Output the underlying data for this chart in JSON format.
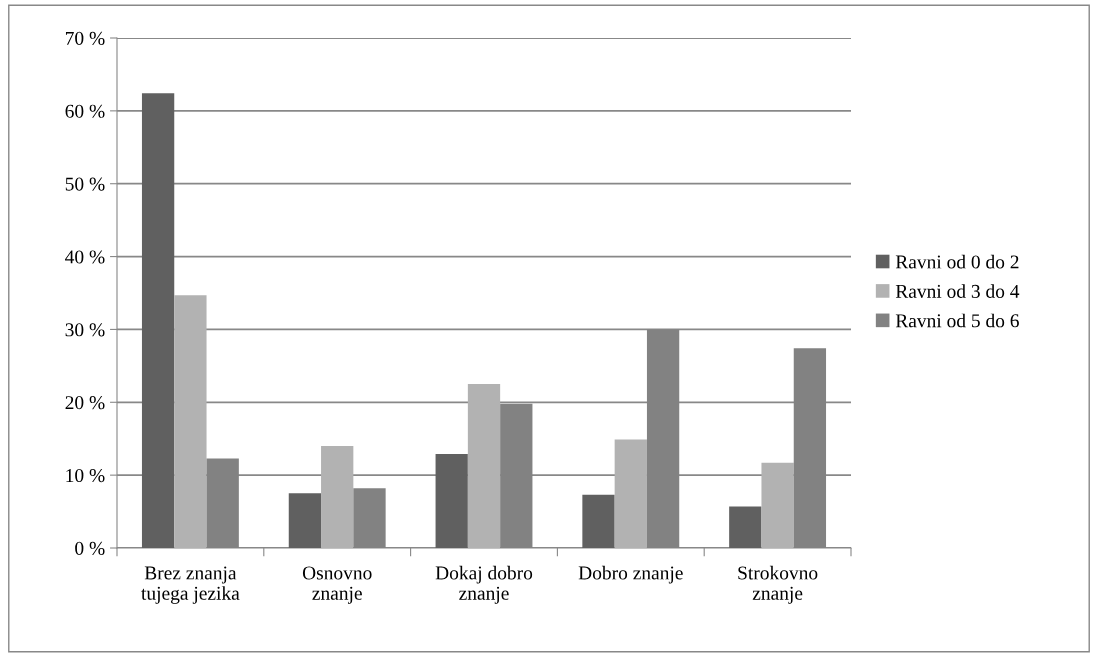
{
  "chart_data": {
    "type": "bar",
    "categories": [
      "Brez znanja\ntujega jezika",
      "Osnovno\nznanje",
      "Dokaj dobro\nznanje",
      "Dobro znanje",
      "Strokovno\nznanje"
    ],
    "series": [
      {
        "name": "Ravni od 0 do 2",
        "color": "#606060",
        "values": [
          62.4,
          7.5,
          12.9,
          7.3,
          5.7
        ]
      },
      {
        "name": "Ravni od 3 do 4",
        "color": "#b2b2b2",
        "values": [
          34.7,
          14.0,
          22.5,
          14.9,
          11.7
        ]
      },
      {
        "name": "Ravni od 5 do 6",
        "color": "#828282",
        "values": [
          12.3,
          8.2,
          19.8,
          30.0,
          27.4
        ]
      }
    ],
    "ylim": [
      0,
      70
    ],
    "yticks": [
      {
        "value": 0,
        "label": "0 %"
      },
      {
        "value": 10,
        "label": "10 %"
      },
      {
        "value": 20,
        "label": "20 %"
      },
      {
        "value": 30,
        "label": "30 %"
      },
      {
        "value": 40,
        "label": "40 %"
      },
      {
        "value": 50,
        "label": "50 %"
      },
      {
        "value": 60,
        "label": "60 %"
      },
      {
        "value": 70,
        "label": "70 %"
      }
    ],
    "grid": "y",
    "legend": "right"
  }
}
